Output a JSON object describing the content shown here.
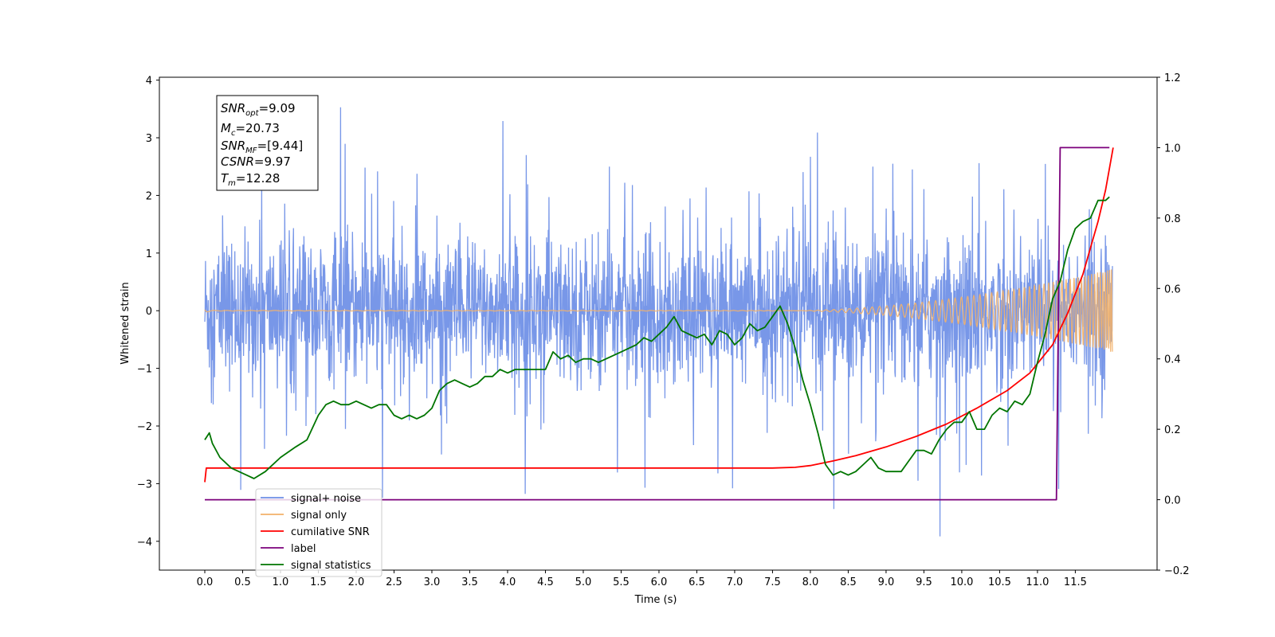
{
  "chart_data": {
    "type": "line",
    "xlabel": "Time (s)",
    "ylabel": "Whitened strain",
    "xlim": [
      -0.6,
      12.58
    ],
    "ylim": [
      -4.5,
      4.05
    ],
    "y2lim": [
      -0.2,
      1.2
    ],
    "xticks": [
      "0.0",
      "0.5",
      "1.0",
      "1.5",
      "2.0",
      "2.5",
      "3.0",
      "3.5",
      "4.0",
      "4.5",
      "5.0",
      "5.5",
      "6.0",
      "6.5",
      "7.0",
      "7.5",
      "8.0",
      "8.5",
      "9.0",
      "9.5",
      "10.0",
      "10.5",
      "11.0",
      "11.5"
    ],
    "yticks": [
      "−4",
      "−3",
      "−2",
      "−1",
      "0",
      "1",
      "2",
      "3",
      "4"
    ],
    "y2ticks": [
      "−0.2",
      "0.0",
      "0.2",
      "0.4",
      "0.6",
      "0.8",
      "1.0",
      "1.2"
    ],
    "grid": false,
    "legend_position": "lower-left",
    "colors": {
      "signal_noise": "#6d8ee6",
      "signal_only": "#f2b16a",
      "cumulative_snr": "#ff0000",
      "label": "#7b007b",
      "signal_statistics": "#007500"
    },
    "annotation": {
      "snr_opt": {
        "sym": "SNR",
        "sub": "opt",
        "val": "=9.09"
      },
      "mc": {
        "sym": "M",
        "sub": "c",
        "val": "=20.73"
      },
      "snr_mf": {
        "sym": "SNR",
        "sub": "MF",
        "val": "=[9.44]"
      },
      "csnr": {
        "sym": "CSNR",
        "sub": "",
        "val": "=9.97"
      },
      "tm": {
        "sym": "T",
        "sub": "m",
        "val": "=12.28"
      }
    },
    "series": [
      {
        "name": "signal+ noise",
        "axis": "left",
        "description_kind": "noisy strain",
        "envelope": {
          "typical_amplitude": 1.3,
          "max": 3.65,
          "min": -4.1
        }
      },
      {
        "name": "signal only",
        "axis": "left",
        "description_kind": "chirp",
        "envelope_start": 0.05,
        "envelope_end": 0.72,
        "onset_time": 7.7
      },
      {
        "name": "cumilative SNR",
        "axis": "right",
        "x": [
          0.0,
          0.02,
          1.0,
          3.0,
          5.0,
          7.0,
          7.5,
          7.8,
          8.0,
          8.3,
          8.6,
          9.0,
          9.4,
          9.8,
          10.2,
          10.6,
          10.9,
          11.2,
          11.4,
          11.6,
          11.8,
          11.9,
          12.0
        ],
        "y": [
          0.05,
          0.09,
          0.09,
          0.09,
          0.09,
          0.09,
          0.09,
          0.092,
          0.097,
          0.11,
          0.125,
          0.15,
          0.18,
          0.215,
          0.26,
          0.31,
          0.36,
          0.44,
          0.53,
          0.64,
          0.79,
          0.88,
          1.0
        ]
      },
      {
        "name": "label",
        "axis": "right",
        "x": [
          0.0,
          11.25,
          11.3,
          11.95
        ],
        "y": [
          0.0,
          0.0,
          1.0,
          1.0
        ]
      },
      {
        "name": "signal statistics",
        "axis": "right",
        "x": [
          0.0,
          0.06,
          0.1,
          0.2,
          0.35,
          0.55,
          0.65,
          0.8,
          1.0,
          1.2,
          1.35,
          1.5,
          1.6,
          1.7,
          1.8,
          1.9,
          2.0,
          2.1,
          2.2,
          2.3,
          2.4,
          2.5,
          2.6,
          2.7,
          2.8,
          2.9,
          3.0,
          3.1,
          3.2,
          3.3,
          3.4,
          3.5,
          3.6,
          3.7,
          3.8,
          3.9,
          4.0,
          4.1,
          4.2,
          4.3,
          4.4,
          4.5,
          4.6,
          4.7,
          4.8,
          4.9,
          5.0,
          5.1,
          5.2,
          5.3,
          5.4,
          5.5,
          5.6,
          5.7,
          5.8,
          5.9,
          6.0,
          6.1,
          6.2,
          6.3,
          6.4,
          6.5,
          6.6,
          6.7,
          6.8,
          6.9,
          7.0,
          7.1,
          7.2,
          7.3,
          7.4,
          7.5,
          7.6,
          7.7,
          7.8,
          7.9,
          8.0,
          8.1,
          8.2,
          8.3,
          8.4,
          8.5,
          8.6,
          8.7,
          8.8,
          8.9,
          9.0,
          9.1,
          9.2,
          9.3,
          9.4,
          9.5,
          9.6,
          9.7,
          9.8,
          9.9,
          10.0,
          10.1,
          10.2,
          10.3,
          10.4,
          10.5,
          10.6,
          10.7,
          10.8,
          10.9,
          11.0,
          11.1,
          11.2,
          11.3,
          11.4,
          11.5,
          11.6,
          11.7,
          11.8,
          11.9,
          11.95
        ],
        "y": [
          0.17,
          0.19,
          0.16,
          0.12,
          0.09,
          0.07,
          0.06,
          0.08,
          0.12,
          0.15,
          0.17,
          0.24,
          0.27,
          0.28,
          0.27,
          0.27,
          0.28,
          0.27,
          0.26,
          0.27,
          0.27,
          0.24,
          0.23,
          0.24,
          0.23,
          0.24,
          0.26,
          0.31,
          0.33,
          0.34,
          0.33,
          0.32,
          0.33,
          0.35,
          0.35,
          0.37,
          0.36,
          0.37,
          0.37,
          0.37,
          0.37,
          0.37,
          0.42,
          0.4,
          0.41,
          0.39,
          0.4,
          0.4,
          0.39,
          0.4,
          0.41,
          0.42,
          0.43,
          0.44,
          0.46,
          0.45,
          0.47,
          0.49,
          0.52,
          0.48,
          0.47,
          0.46,
          0.47,
          0.44,
          0.48,
          0.47,
          0.44,
          0.46,
          0.5,
          0.48,
          0.49,
          0.52,
          0.55,
          0.5,
          0.43,
          0.34,
          0.27,
          0.19,
          0.1,
          0.07,
          0.08,
          0.07,
          0.08,
          0.1,
          0.12,
          0.09,
          0.08,
          0.08,
          0.08,
          0.11,
          0.14,
          0.14,
          0.13,
          0.17,
          0.2,
          0.22,
          0.22,
          0.25,
          0.2,
          0.2,
          0.24,
          0.26,
          0.25,
          0.28,
          0.27,
          0.3,
          0.39,
          0.47,
          0.57,
          0.62,
          0.71,
          0.77,
          0.79,
          0.8,
          0.85,
          0.85,
          0.86
        ]
      }
    ]
  }
}
